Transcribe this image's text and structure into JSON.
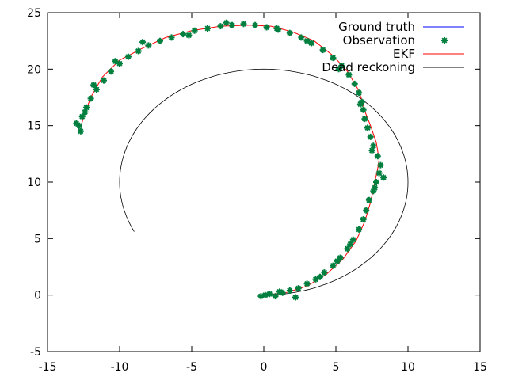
{
  "chart_data": {
    "type": "scatter",
    "title": "",
    "xlabel": "",
    "ylabel": "",
    "xlim": [
      -15,
      15
    ],
    "ylim": [
      -5,
      25
    ],
    "xticks": [
      -15,
      -10,
      -5,
      0,
      5,
      10,
      15
    ],
    "yticks": [
      -5,
      0,
      5,
      10,
      15,
      20,
      25
    ],
    "grid": false,
    "legend_position": "top-right",
    "series": [
      {
        "name": "Ground truth",
        "kind": "line",
        "color": "#0000ff",
        "x": [
          0,
          1.5,
          3,
          4.3,
          5.5,
          6.4,
          7,
          7.4,
          7.7,
          7.9,
          8.0,
          7.8,
          7.4,
          7.0,
          6.8,
          6.5,
          5.8,
          4.8,
          3.5,
          2.0,
          0.5,
          -1.0,
          -3.0,
          -5.0,
          -6.8,
          -8.5,
          -10.0,
          -11.2,
          -12.0,
          -12.5,
          -12.7
        ],
        "y": [
          0,
          0.2,
          0.8,
          1.8,
          3.2,
          4.8,
          6.5,
          8.2,
          10.0,
          11.2,
          12.0,
          13.5,
          15.0,
          16.3,
          17.3,
          18.3,
          19.8,
          21.2,
          22.5,
          23.3,
          23.8,
          23.9,
          23.8,
          23.4,
          22.8,
          21.8,
          20.8,
          19.3,
          17.5,
          15.8,
          14.8
        ],
        "visible": false
      },
      {
        "name": "Observation",
        "kind": "points",
        "color": "#007f3f",
        "x": [
          0.1,
          0.4,
          0.8,
          1.3,
          1.8,
          2.4,
          3.0,
          3.6,
          4.2,
          4.8,
          5.3,
          5.8,
          6.2,
          6.6,
          6.9,
          7.1,
          7.3,
          7.6,
          7.8,
          8.0,
          8.1,
          7.9,
          7.6,
          7.4,
          7.2,
          7.0,
          6.9,
          6.8,
          6.6,
          6.3,
          5.9,
          5.4,
          4.8,
          4.1,
          3.3,
          2.6,
          1.8,
          1.0,
          0.2,
          -0.6,
          -1.4,
          -2.2,
          -3.0,
          -3.9,
          -4.8,
          -5.6,
          -6.4,
          -7.2,
          -8.0,
          -8.7,
          -9.4,
          -10.0,
          -10.6,
          -11.1,
          -11.6,
          -12.0,
          -12.3,
          -12.6,
          -12.8,
          -12.7,
          -0.2,
          1.1,
          2.2,
          3.9,
          5.1,
          6.0,
          7.7,
          8.3,
          7.5,
          6.7,
          5.2,
          3.0,
          0.9,
          -2.6,
          -5.2,
          -8.4,
          -10.3,
          -11.8,
          -12.4,
          -13.0
        ],
        "y": [
          0.0,
          0.1,
          -0.1,
          0.2,
          0.4,
          0.6,
          1.0,
          1.4,
          2.0,
          2.6,
          3.3,
          4.1,
          4.9,
          5.8,
          6.7,
          7.5,
          8.4,
          9.2,
          10.0,
          10.8,
          11.5,
          12.3,
          13.2,
          14.0,
          14.8,
          15.6,
          16.4,
          17.1,
          17.9,
          18.7,
          19.5,
          20.3,
          21.0,
          21.7,
          22.3,
          22.8,
          23.2,
          23.5,
          23.7,
          23.9,
          24.0,
          23.9,
          23.8,
          23.6,
          23.4,
          23.1,
          22.8,
          22.5,
          22.1,
          21.6,
          21.1,
          20.5,
          19.8,
          19.0,
          18.2,
          17.4,
          16.6,
          15.8,
          15.0,
          14.5,
          -0.1,
          0.3,
          -0.2,
          1.6,
          3.0,
          4.5,
          9.5,
          10.4,
          12.8,
          16.9,
          20.0,
          22.5,
          23.6,
          24.1,
          23.0,
          22.4,
          20.7,
          18.6,
          16.2,
          15.2
        ],
        "marker": "star"
      },
      {
        "name": "EKF",
        "kind": "line",
        "color": "#ff0000",
        "x": [
          0,
          1.5,
          3,
          4.3,
          5.5,
          6.4,
          7,
          7.4,
          7.7,
          7.9,
          8.0,
          7.8,
          7.4,
          7.0,
          6.8,
          6.5,
          5.8,
          4.8,
          3.5,
          2.0,
          0.5,
          -1.0,
          -3.0,
          -5.0,
          -6.8,
          -8.5,
          -10.0,
          -11.2,
          -12.0,
          -12.5,
          -12.7
        ],
        "y": [
          0,
          0.2,
          0.8,
          1.8,
          3.2,
          4.8,
          6.5,
          8.2,
          10.0,
          11.2,
          12.0,
          13.5,
          15.0,
          16.3,
          17.3,
          18.3,
          19.8,
          21.2,
          22.5,
          23.3,
          23.8,
          23.9,
          23.8,
          23.4,
          22.8,
          21.8,
          20.8,
          19.3,
          17.5,
          15.8,
          14.8
        ]
      },
      {
        "name": "Dead reckoning",
        "kind": "arc",
        "color": "#000000",
        "center": [
          0,
          10
        ],
        "radius": 10,
        "start_deg": -90,
        "end_deg": 207
      }
    ]
  }
}
